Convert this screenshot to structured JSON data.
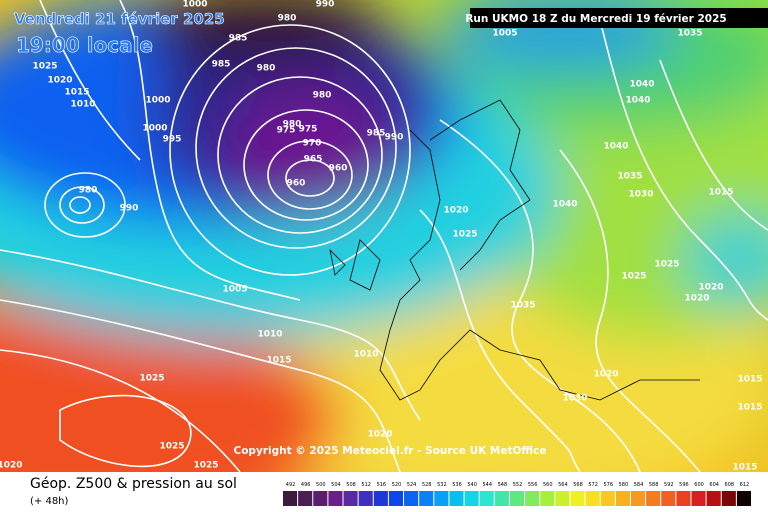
{
  "header": {
    "date": "Vendredi 21 février 2025",
    "time": "19:00 locale",
    "run": "Run UKMO 18 Z du Mercredi 19 février 2025"
  },
  "copyright": "Copyright © 2025 Meteociel.fr - Source UK MetOffice",
  "footer": {
    "title": "Géop. Z500 & pression au sol",
    "lead": "(+ 48h)"
  },
  "legend": {
    "labels": [
      492,
      496,
      500,
      504,
      508,
      512,
      516,
      520,
      524,
      528,
      532,
      536,
      540,
      544,
      548,
      552,
      556,
      560,
      564,
      568,
      572,
      576,
      580,
      584,
      588,
      592,
      596,
      600,
      604,
      608,
      612
    ],
    "colors": [
      "#3c1a3c",
      "#4b1d55",
      "#5a1d70",
      "#6a1f8a",
      "#5a2aa5",
      "#4030c0",
      "#2036d8",
      "#0a46ea",
      "#0a64f0",
      "#0a82f5",
      "#0aa0f5",
      "#0abef0",
      "#10d6e6",
      "#2ee6d0",
      "#40e8a8",
      "#60e880",
      "#80ec5c",
      "#a6f03c",
      "#ccf02a",
      "#eef020",
      "#f8e020",
      "#fac820",
      "#f8b020",
      "#f89820",
      "#f47c20",
      "#f06020",
      "#e84020",
      "#d82020",
      "#b81010",
      "#780808",
      "#100000"
    ]
  },
  "isobars": [
    "1000",
    "990",
    "980",
    "985",
    "985",
    "980",
    "1005",
    "1035",
    "1025",
    "1020",
    "1015",
    "1010",
    "1000",
    "1000",
    "995",
    "980",
    "980",
    "975",
    "975",
    "970",
    "965",
    "960",
    "960",
    "985",
    "990",
    "980",
    "990",
    "1040",
    "1040",
    "1040",
    "1035",
    "1030",
    "1015",
    "1040",
    "1020",
    "1025",
    "1025",
    "1025",
    "1020",
    "1020",
    "1035",
    "1005",
    "1010",
    "1015",
    "1010",
    "1020",
    "1030",
    "1015",
    "1015",
    "1025",
    "1025",
    "1025",
    "1020",
    "1020",
    "1015"
  ]
}
